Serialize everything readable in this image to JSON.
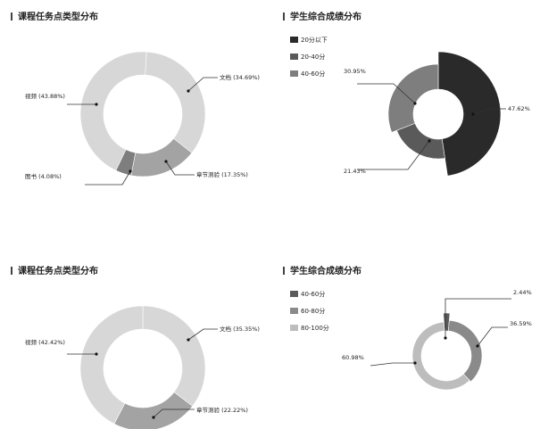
{
  "colors": {
    "light_gray": "#d7d7d7",
    "mid_light_gray": "#bdbdbd",
    "mid_gray": "#a3a3a3",
    "gray": "#7e7e7e",
    "dark_gray": "#5a5a5a",
    "near_black": "#2a2a2a",
    "leader": "#333333"
  },
  "chart_data": [
    {
      "type": "pie",
      "title": "课程任务点类型分布",
      "series": [
        {
          "label": "视频 (43.88%)",
          "value": 43.88,
          "color": "#d7d7d7"
        },
        {
          "label": "文档 (34.69%)",
          "value": 34.69,
          "color": "#d7d7d7"
        },
        {
          "label": "章节测验 (17.35%)",
          "value": 17.35,
          "color": "#a3a3a3"
        },
        {
          "label": "图书 (4.08%)",
          "value": 4.08,
          "color": "#7e7e7e"
        }
      ]
    },
    {
      "type": "pie",
      "title": "学生综合成绩分布",
      "legend": [
        {
          "label": "20分以下",
          "color": "#2a2a2a"
        },
        {
          "label": "20-40分",
          "color": "#5a5a5a"
        },
        {
          "label": "40-60分",
          "color": "#7e7e7e"
        }
      ],
      "series": [
        {
          "label": "47.62%",
          "value": 47.62,
          "color": "#2a2a2a"
        },
        {
          "label": "21.43%",
          "value": 21.43,
          "color": "#5a5a5a"
        },
        {
          "label": "30.95%",
          "value": 30.95,
          "color": "#7e7e7e"
        }
      ]
    },
    {
      "type": "pie",
      "title": "课程任务点类型分布",
      "series": [
        {
          "label": "文档 (35.35%)",
          "value": 35.35,
          "color": "#d7d7d7"
        },
        {
          "label": "章节测验 (22.22%)",
          "value": 22.22,
          "color": "#a3a3a3"
        },
        {
          "label": "视频 (42.42%)",
          "value": 42.42,
          "color": "#d7d7d7"
        }
      ]
    },
    {
      "type": "pie",
      "title": "学生综合成绩分布",
      "legend": [
        {
          "label": "40-60分",
          "color": "#5a5a5a"
        },
        {
          "label": "60-80分",
          "color": "#8a8a8a"
        },
        {
          "label": "80-100分",
          "color": "#bdbdbd"
        }
      ],
      "series": [
        {
          "label": "2.44%",
          "value": 2.44,
          "color": "#5a5a5a"
        },
        {
          "label": "36.59%",
          "value": 36.59,
          "color": "#8a8a8a"
        },
        {
          "label": "60.98%",
          "value": 60.98,
          "color": "#bdbdbd"
        }
      ]
    }
  ]
}
